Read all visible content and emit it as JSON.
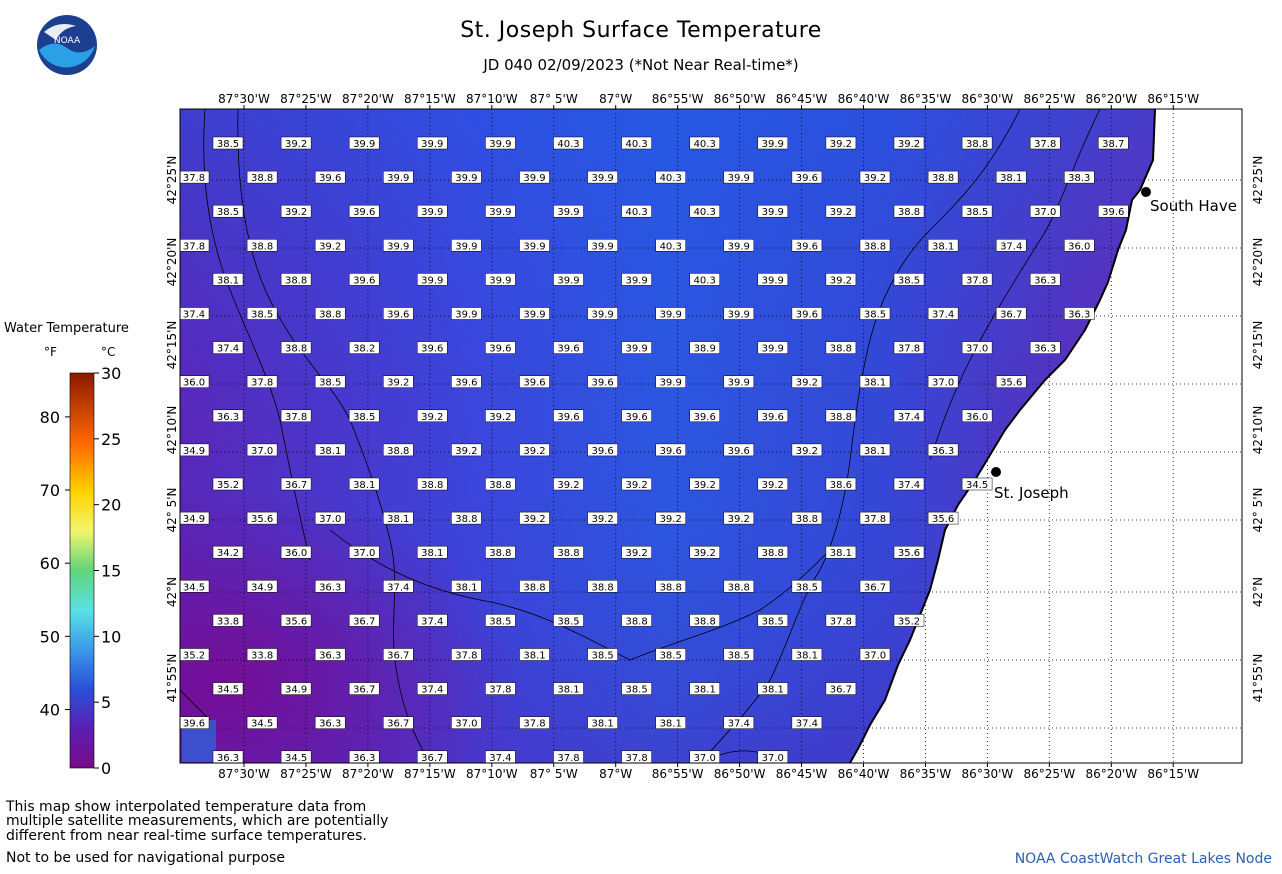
{
  "header": {
    "title": "St. Joseph Surface Temperature",
    "subtitle": "JD 040 02/09/2023 (*Not Near Real-time*)",
    "logo_text": "NOAA"
  },
  "map": {
    "lon_labels": [
      "87°30'W",
      "87°25'W",
      "87°20'W",
      "87°15'W",
      "87°10'W",
      "87° 5'W",
      "87°W",
      "86°55'W",
      "86°50'W",
      "86°45'W",
      "86°40'W",
      "86°35'W",
      "86°30'W",
      "86°25'W",
      "86°20'W",
      "86°15'W"
    ],
    "lat_labels": [
      "42°25'N",
      "42°20'N",
      "42°15'N",
      "42°10'N",
      "42° 5'N",
      "42°N",
      "41°55'N"
    ],
    "cities": [
      {
        "name": "South Haven",
        "display": "South Have"
      },
      {
        "name": "St. Joseph",
        "display": "St. Joseph"
      }
    ],
    "temperature_rows": [
      [
        "38.5",
        "39.2",
        "39.9",
        "39.9",
        "39.9",
        "40.3",
        "40.3",
        "40.3",
        "39.9",
        "39.2",
        "39.2",
        "38.8",
        "37.8",
        "38.7"
      ],
      [
        "37.8",
        "38.8",
        "39.6",
        "39.9",
        "39.9",
        "39.9",
        "39.9",
        "40.3",
        "39.9",
        "39.6",
        "39.2",
        "38.8",
        "38.1",
        "38.3"
      ],
      [
        "38.5",
        "39.2",
        "39.6",
        "39.9",
        "39.9",
        "39.9",
        "40.3",
        "40.3",
        "39.9",
        "39.2",
        "38.8",
        "38.5",
        "37.0",
        "39.6"
      ],
      [
        "37.8",
        "38.8",
        "39.2",
        "39.9",
        "39.9",
        "39.9",
        "39.9",
        "40.3",
        "39.9",
        "39.6",
        "38.8",
        "38.1",
        "37.4",
        "36.0"
      ],
      [
        "38.1",
        "38.8",
        "39.6",
        "39.9",
        "39.9",
        "39.9",
        "39.9",
        "40.3",
        "39.9",
        "39.2",
        "38.5",
        "37.8",
        "36.3"
      ],
      [
        "37.4",
        "38.5",
        "38.8",
        "39.6",
        "39.9",
        "39.9",
        "39.9",
        "39.9",
        "39.9",
        "39.6",
        "38.5",
        "37.4",
        "36.7",
        "36.3"
      ],
      [
        "37.4",
        "38.8",
        "38.2",
        "39.6",
        "39.6",
        "39.6",
        "39.9",
        "38.9",
        "39.9",
        "38.8",
        "37.8",
        "37.0",
        "36.3"
      ],
      [
        "36.0",
        "37.8",
        "38.5",
        "39.2",
        "39.6",
        "39.6",
        "39.6",
        "39.9",
        "39.9",
        "39.2",
        "38.1",
        "37.0",
        "35.6"
      ],
      [
        "36.3",
        "37.8",
        "38.5",
        "39.2",
        "39.2",
        "39.6",
        "39.6",
        "39.6",
        "39.6",
        "38.8",
        "37.4",
        "36.0"
      ],
      [
        "34.9",
        "37.0",
        "38.1",
        "38.8",
        "39.2",
        "39.2",
        "39.6",
        "39.6",
        "39.6",
        "39.2",
        "38.1",
        "36.3"
      ],
      [
        "35.2",
        "36.7",
        "38.1",
        "38.8",
        "38.8",
        "39.2",
        "39.2",
        "39.2",
        "39.2",
        "38.6",
        "37.4",
        "34.5"
      ],
      [
        "34.9",
        "35.6",
        "37.0",
        "38.1",
        "38.8",
        "39.2",
        "39.2",
        "39.2",
        "39.2",
        "38.8",
        "37.8",
        "35.6"
      ],
      [
        "34.2",
        "36.0",
        "37.0",
        "38.1",
        "38.8",
        "38.8",
        "39.2",
        "39.2",
        "38.8",
        "38.1",
        "35.6"
      ],
      [
        "34.5",
        "34.9",
        "36.3",
        "37.4",
        "38.1",
        "38.8",
        "38.8",
        "38.8",
        "38.8",
        "38.5",
        "36.7"
      ],
      [
        "33.8",
        "35.6",
        "36.7",
        "37.4",
        "38.5",
        "38.5",
        "38.8",
        "38.8",
        "38.5",
        "37.8",
        "35.2"
      ],
      [
        "35.2",
        "33.8",
        "36.3",
        "36.7",
        "37.8",
        "38.1",
        "38.5",
        "38.5",
        "38.5",
        "38.1",
        "37.0"
      ],
      [
        "34.5",
        "34.9",
        "36.7",
        "37.4",
        "37.8",
        "38.1",
        "38.5",
        "38.1",
        "38.1",
        "36.7"
      ],
      [
        "39.6",
        "34.5",
        "36.3",
        "36.7",
        "37.0",
        "37.8",
        "38.1",
        "38.1",
        "37.4",
        "37.4"
      ],
      [
        "36.3",
        "34.5",
        "36.3",
        "36.7",
        "37.4",
        "37.8",
        "37.8",
        "37.0",
        "37.0"
      ]
    ]
  },
  "legend": {
    "title": "Water Temperature",
    "unit_f": "°F",
    "unit_c": "°C",
    "f_ticks": [
      "80",
      "70",
      "60",
      "50",
      "40"
    ],
    "c_ticks": [
      "30",
      "25",
      "20",
      "15",
      "10",
      "5",
      "0"
    ],
    "colors": [
      "#8b1a00",
      "#ff6a00",
      "#ffd200",
      "#f2f56c",
      "#5fd47a",
      "#5ce0e6",
      "#3a9ae8",
      "#2850d8",
      "#5a1fb3",
      "#7a0a8a"
    ]
  },
  "footer": {
    "note_line1": "This map show interpolated temperature data from",
    "note_line2": "multiple satellite measurements, which are potentially",
    "note_line3": "different from near real-time surface temperatures.",
    "note_line4": "Not to be used for navigational purpose",
    "credit": "NOAA CoastWatch Great Lakes Node"
  }
}
